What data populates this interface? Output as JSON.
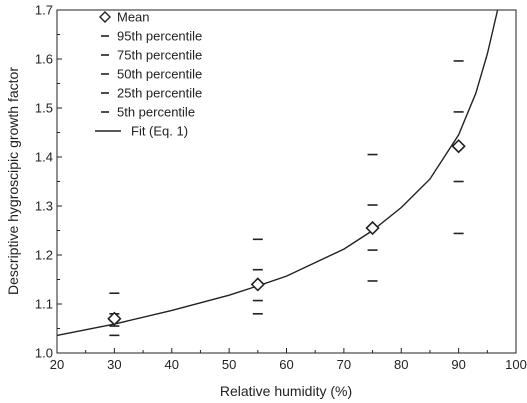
{
  "chart_data": {
    "type": "scatter",
    "xlabel": "Relative humidity (%)",
    "ylabel": "Descriptive hygroscipic growth factor",
    "xlim": [
      20,
      100
    ],
    "ylim": [
      1.0,
      1.7
    ],
    "xticks": [
      "20",
      "30",
      "40",
      "50",
      "60",
      "70",
      "80",
      "90",
      "100"
    ],
    "yticks": [
      "1.0",
      "1.1",
      "1.2",
      "1.3",
      "1.4",
      "1.5",
      "1.6",
      "1.7"
    ],
    "grid": false,
    "legend_position": "top-left",
    "series": [
      {
        "name": "Mean",
        "marker": "diamond",
        "x": [
          30,
          55,
          75,
          90
        ],
        "y": [
          1.07,
          1.14,
          1.255,
          1.422
        ]
      },
      {
        "name": "95th percentile",
        "marker": "dash",
        "x": [
          30,
          55,
          75,
          90
        ],
        "y": [
          1.122,
          1.232,
          1.405,
          1.596
        ]
      },
      {
        "name": "75th percentile",
        "marker": "dash",
        "x": [
          30,
          55,
          75,
          90
        ],
        "y": [
          1.08,
          1.17,
          1.302,
          1.492
        ]
      },
      {
        "name": "50th percentile",
        "marker": "dash",
        "x": [
          30,
          55,
          75,
          90
        ],
        "y": [
          1.066,
          1.138,
          1.255,
          1.42
        ]
      },
      {
        "name": "25th percentile",
        "marker": "dash",
        "x": [
          30,
          55,
          75,
          90
        ],
        "y": [
          1.055,
          1.107,
          1.21,
          1.35
        ]
      },
      {
        "name": "5th percentile",
        "marker": "dash",
        "x": [
          30,
          55,
          75,
          90
        ],
        "y": [
          1.036,
          1.08,
          1.147,
          1.244
        ]
      },
      {
        "name": "Fit (Eq. 1)",
        "marker": "line",
        "x": [
          20,
          30,
          40,
          50,
          55,
          60,
          70,
          75,
          80,
          85,
          90,
          93,
          95,
          96.8
        ],
        "y": [
          1.036,
          1.059,
          1.087,
          1.118,
          1.137,
          1.157,
          1.212,
          1.25,
          1.297,
          1.355,
          1.445,
          1.53,
          1.61,
          1.7
        ]
      }
    ]
  }
}
